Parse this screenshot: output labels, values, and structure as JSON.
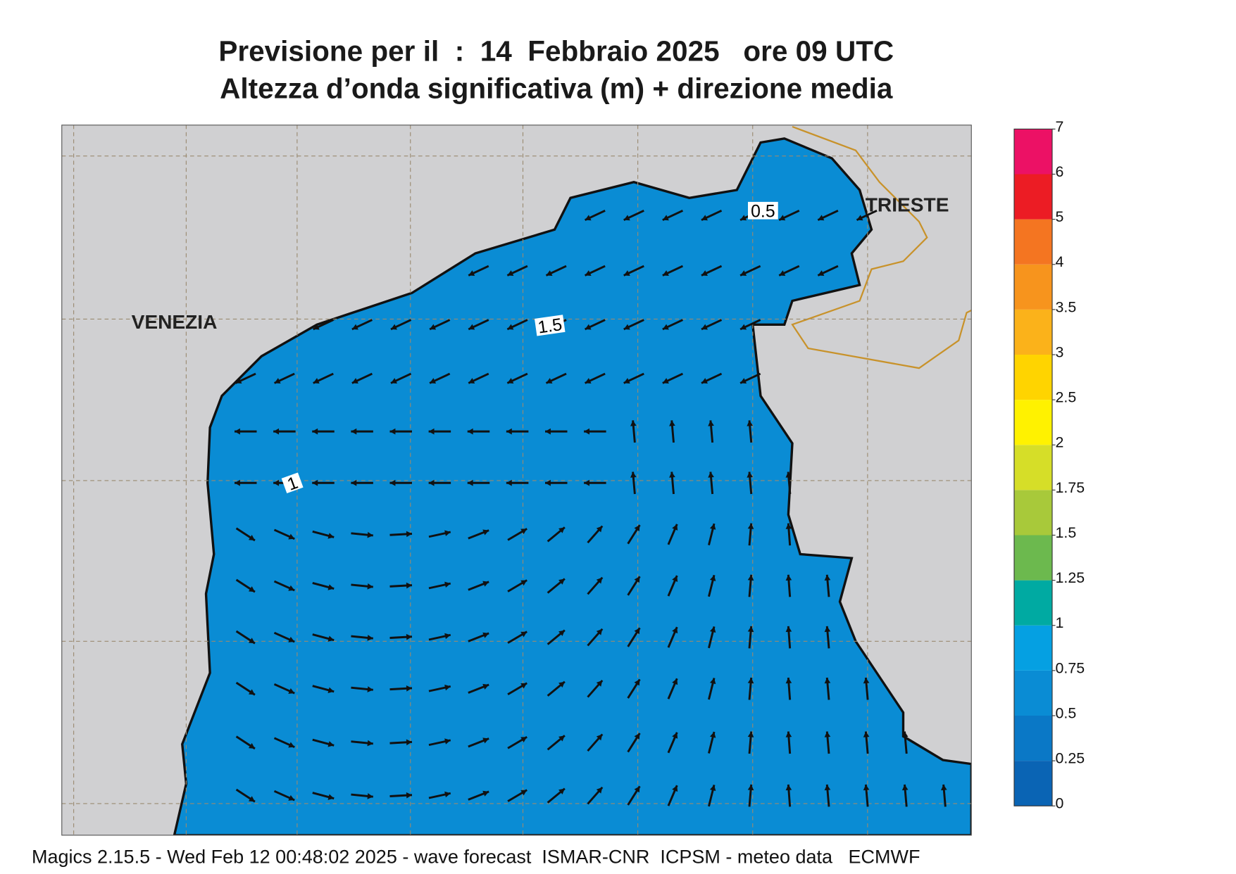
{
  "title": {
    "line1": "Previsione per il  :  14  Febbraio 2025   ore 09 UTC",
    "line2": "Altezza d’onda significativa (m) + direzione media"
  },
  "places": [
    {
      "label": "VENEZIA"
    },
    {
      "label": "TRIESTE"
    }
  ],
  "contour_labels": [
    "0.5",
    "1.5",
    "1"
  ],
  "colorbar": {
    "ticks": [
      0,
      0.25,
      0.5,
      0.75,
      1,
      1.25,
      1.5,
      1.75,
      2,
      2.5,
      3,
      3.5,
      4,
      5,
      6,
      7
    ],
    "colors": [
      "#0a64b4",
      "#0a78c6",
      "#0a8cd4",
      "#05a0e2",
      "#00aaa2",
      "#6cb94e",
      "#a8c93a",
      "#d6de28",
      "#fff200",
      "#ffd400",
      "#fbb21a",
      "#f7941d",
      "#f47521",
      "#ec1c24",
      "#ec1165"
    ]
  },
  "footer": "Magics 2.15.5 - Wed Feb 12 00:48:02 2025 - wave forecast  ISMAR-CNR  ICPSM - meteo data   ECMWF"
}
